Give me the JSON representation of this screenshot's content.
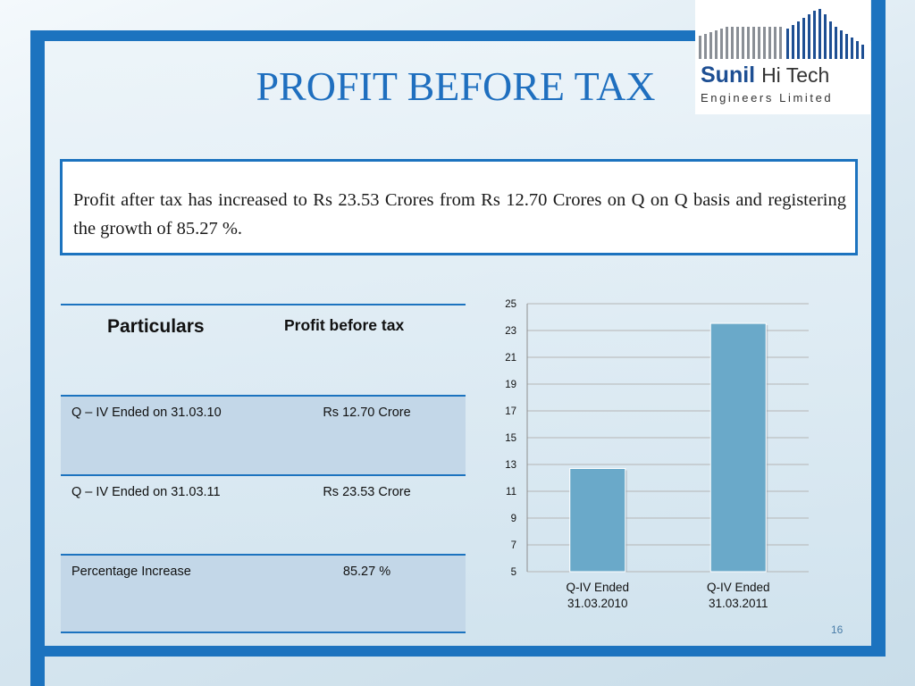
{
  "slide": {
    "title": "PROFIT BEFORE TAX",
    "page_number": "16"
  },
  "logo": {
    "brand_bold": "Sunil",
    "brand_light": "Hi Tech",
    "subtitle": "Engineers Limited"
  },
  "summary": {
    "text": "Profit after tax has increased to Rs 23.53 Crores from Rs 12.70 Crores on Q on Q basis and registering the growth of  85.27 %."
  },
  "table": {
    "headers": [
      "Particulars",
      "Profit before tax"
    ],
    "rows": [
      [
        "Q – IV Ended  on  31.03.10",
        "Rs 12.70 Crore"
      ],
      [
        "Q – IV Ended on 31.03.11",
        "Rs 23.53 Crore"
      ],
      [
        "Percentage Increase",
        "85.27 %"
      ]
    ]
  },
  "colors": {
    "accent": "#1c73bf",
    "bar": "#6aa9c9",
    "title": "#1f6fbf"
  },
  "chart_data": {
    "type": "bar",
    "categories": [
      [
        "Q-IV Ended",
        "31.03.2010"
      ],
      [
        "Q-IV Ended",
        "31.03.2011"
      ]
    ],
    "values": [
      12.7,
      23.53
    ],
    "title": "",
    "xlabel": "",
    "ylabel": "",
    "ylim": [
      5,
      25
    ],
    "yticks": [
      5,
      7,
      9,
      11,
      13,
      15,
      17,
      19,
      21,
      23,
      25
    ],
    "grid": true,
    "legend": "none"
  }
}
